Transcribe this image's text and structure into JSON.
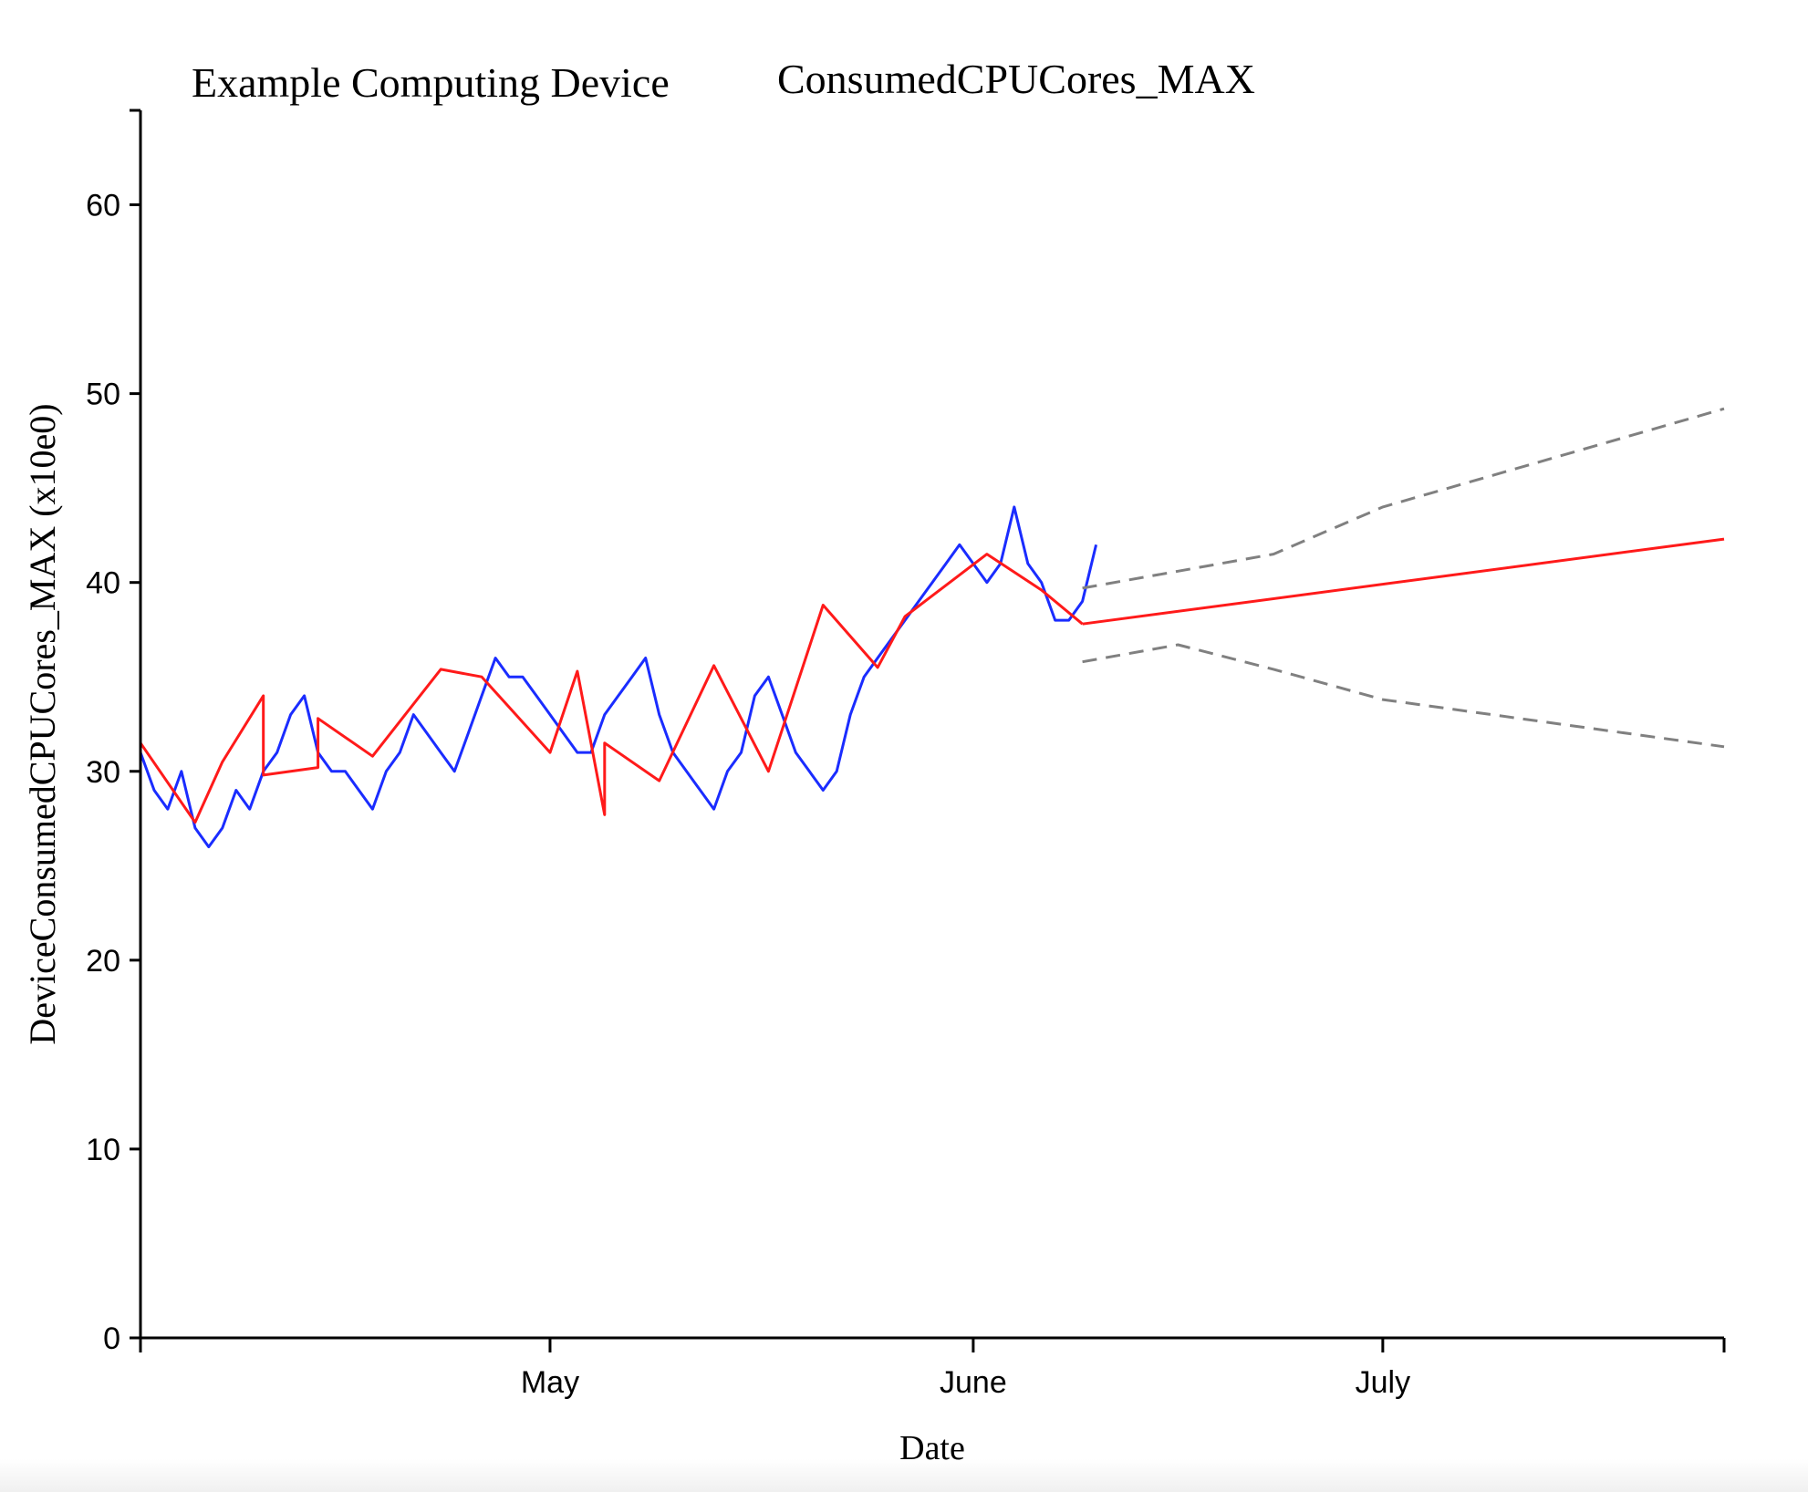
{
  "chart_data": {
    "type": "line",
    "title_left": "Example Computing Device",
    "title_right": "ConsumedCPUCores_MAX",
    "xlabel": "Date",
    "ylabel": "DeviceConsumedCPUCores_MAX (x10e0)",
    "ylim": [
      0,
      65
    ],
    "xlim": [
      "2023-04-01",
      "2023-07-26"
    ],
    "x_ticks": [
      {
        "date": "2023-04-01",
        "label": ""
      },
      {
        "date": "2023-05-01",
        "label": "May"
      },
      {
        "date": "2023-06-01",
        "label": "June"
      },
      {
        "date": "2023-07-01",
        "label": "July"
      },
      {
        "date": "2023-07-26",
        "label": ""
      }
    ],
    "y_ticks": [
      0,
      10,
      20,
      30,
      40,
      50,
      60
    ],
    "grid": false,
    "series": [
      {
        "role": "observed",
        "color": "#1a2cff",
        "x": [
          "2023-04-01",
          "2023-04-02",
          "2023-04-03",
          "2023-04-04",
          "2023-04-05",
          "2023-04-06",
          "2023-04-07",
          "2023-04-08",
          "2023-04-09",
          "2023-04-10",
          "2023-04-11",
          "2023-04-12",
          "2023-04-13",
          "2023-04-14",
          "2023-04-15",
          "2023-04-16",
          "2023-04-17",
          "2023-04-18",
          "2023-04-19",
          "2023-04-20",
          "2023-04-21",
          "2023-04-22",
          "2023-04-23",
          "2023-04-24",
          "2023-04-25",
          "2023-04-26",
          "2023-04-27",
          "2023-04-28",
          "2023-04-29",
          "2023-04-30",
          "2023-05-01",
          "2023-05-02",
          "2023-05-03",
          "2023-05-04",
          "2023-05-05",
          "2023-05-06",
          "2023-05-07",
          "2023-05-08",
          "2023-05-09",
          "2023-05-10",
          "2023-05-11",
          "2023-05-12",
          "2023-05-13",
          "2023-05-14",
          "2023-05-15",
          "2023-05-16",
          "2023-05-17",
          "2023-05-18",
          "2023-05-19",
          "2023-05-20",
          "2023-05-21",
          "2023-05-22",
          "2023-05-23",
          "2023-05-24",
          "2023-05-25",
          "2023-05-26",
          "2023-05-27",
          "2023-05-28",
          "2023-05-29",
          "2023-05-30",
          "2023-05-31",
          "2023-06-01",
          "2023-06-02",
          "2023-06-03",
          "2023-06-04",
          "2023-06-05",
          "2023-06-06",
          "2023-06-07",
          "2023-06-08",
          "2023-06-09",
          "2023-06-10"
        ],
        "y": [
          31,
          29,
          28,
          30,
          27,
          26,
          27,
          29,
          28,
          30,
          31,
          33,
          34,
          31,
          30,
          30,
          29,
          28,
          30,
          31,
          33,
          32,
          31,
          30,
          32,
          34,
          36,
          35,
          35,
          34,
          33,
          32,
          31,
          31,
          33,
          34,
          35,
          36,
          33,
          31,
          30,
          29,
          28,
          30,
          31,
          34,
          35,
          33,
          31,
          30,
          29,
          30,
          33,
          35,
          36,
          37,
          38,
          39,
          40,
          41,
          42,
          41,
          40,
          41,
          44,
          41,
          40,
          38,
          38,
          39,
          42
        ]
      },
      {
        "role": "trend",
        "color": "#ff1a1a",
        "x": [
          "2023-04-01",
          "2023-04-05",
          "2023-04-07",
          "2023-04-10",
          "2023-04-10",
          "2023-04-14",
          "2023-04-14",
          "2023-04-18",
          "2023-04-23",
          "2023-04-26",
          "2023-05-01",
          "2023-05-03",
          "2023-05-05",
          "2023-05-05",
          "2023-05-09",
          "2023-05-13",
          "2023-05-17",
          "2023-05-17",
          "2023-05-21",
          "2023-05-25",
          "2023-05-27",
          "2023-05-27",
          "2023-06-02",
          "2023-06-06",
          "2023-06-09",
          "2023-06-09"
        ],
        "y": [
          31.5,
          27.3,
          30.5,
          34.0,
          29.8,
          30.2,
          32.8,
          30.8,
          35.4,
          35.0,
          31.0,
          35.3,
          27.7,
          31.5,
          29.5,
          35.6,
          30.0,
          30.0,
          38.8,
          35.5,
          38.2,
          38.2,
          41.5,
          39.6,
          37.8,
          37.8
        ]
      },
      {
        "role": "forecast",
        "color": "#ff1a1a",
        "x": [
          "2023-06-09",
          "2023-07-26"
        ],
        "y": [
          37.8,
          42.3
        ]
      },
      {
        "role": "upper-bound",
        "color": "#808080",
        "dash": true,
        "x": [
          "2023-06-09",
          "2023-06-16",
          "2023-06-23",
          "2023-07-01",
          "2023-07-26"
        ],
        "y": [
          39.7,
          40.6,
          41.5,
          44.0,
          49.2
        ]
      },
      {
        "role": "lower-bound",
        "color": "#808080",
        "dash": true,
        "x": [
          "2023-06-09",
          "2023-06-16",
          "2023-06-23",
          "2023-07-01",
          "2023-07-26"
        ],
        "y": [
          35.8,
          36.7,
          35.4,
          33.8,
          31.3
        ]
      }
    ]
  }
}
